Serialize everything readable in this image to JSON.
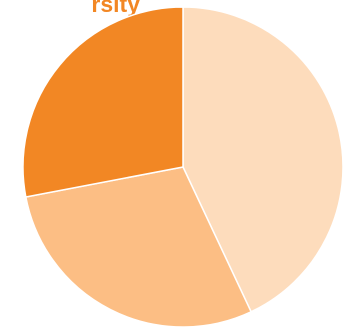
{
  "header": {
    "title": "rsity",
    "title_color": "#F28724"
  },
  "chart_data": {
    "type": "pie",
    "title": "rsity",
    "start_angle_deg": 0,
    "direction": "clockwise",
    "slices": [
      {
        "value": 43,
        "color": "#FDDCBC"
      },
      {
        "value": 29,
        "color": "#FCBE84"
      },
      {
        "value": 28,
        "color": "#F28724"
      }
    ]
  }
}
